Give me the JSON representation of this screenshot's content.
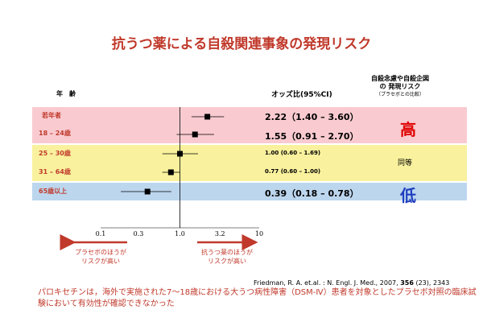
{
  "title": "抗うつ薬による自殺関連事象の発現リスク",
  "header_age": "年　齢",
  "header_or": "オッズ比(95%CI)",
  "risk_header": {
    "line1": "自殺念慮や自殺企図",
    "line2": "の 発現リスク",
    "line3": "（プラセボとの比較）"
  },
  "risk_labels": {
    "high": "高",
    "mid": "同等",
    "low": "低"
  },
  "colors": {
    "high": "#f9cbd0",
    "mid": "#f9f19d",
    "low": "#bcd6ee",
    "accent": "#c0392b",
    "high_text": "#e00000",
    "low_text": "#1f3fbf"
  },
  "chart_data": {
    "type": "forest",
    "x_scale": "log",
    "xlim": [
      0.1,
      10
    ],
    "x_ticks": [
      "0.1",
      "0.3",
      "1.0",
      "3.2",
      "10"
    ],
    "x_tick_values": [
      0.1,
      0.3,
      1.0,
      3.2,
      10
    ],
    "rows": [
      {
        "label": "若年者",
        "or": 2.22,
        "ci_low": 1.4,
        "ci_high": 3.6,
        "text": "2.22（1.40 – 3.60）",
        "size": "big"
      },
      {
        "label": "18 – 24歳",
        "or": 1.55,
        "ci_low": 0.91,
        "ci_high": 2.7,
        "text": "1.55（0.91 – 2.70）",
        "size": "big"
      },
      {
        "label": "25 – 30歳",
        "or": 1.0,
        "ci_low": 0.6,
        "ci_high": 1.69,
        "text": "1.00 (0.60 – 1.69)",
        "size": "small"
      },
      {
        "label": "31 – 64歳",
        "or": 0.77,
        "ci_low": 0.6,
        "ci_high": 1.0,
        "text": "0.77 (0.60 – 1.00)",
        "size": "small"
      },
      {
        "label": "65歳以上",
        "or": 0.39,
        "ci_low": 0.18,
        "ci_high": 0.78,
        "text": "0.39（0.18 – 0.78）",
        "size": "big"
      }
    ]
  },
  "arrow_left": {
    "line1": "プラセボのほうが",
    "line2": "リスクが高い"
  },
  "arrow_right": {
    "line1": "抗うつ薬のほうが",
    "line2": "リスクが高い"
  },
  "citation": {
    "prefix": "Friedman, R. A. et.al. : N. Engl. J. Med., 2007, ",
    "volume": "356",
    "suffix": " (23), 2343"
  },
  "note": "パロキセチンは，海外で実施された7～18歳における大うつ病性障害（DSM-Ⅳ）患者を対象としたプラセボ対照の臨床試験において有効性が確認できなかった"
}
